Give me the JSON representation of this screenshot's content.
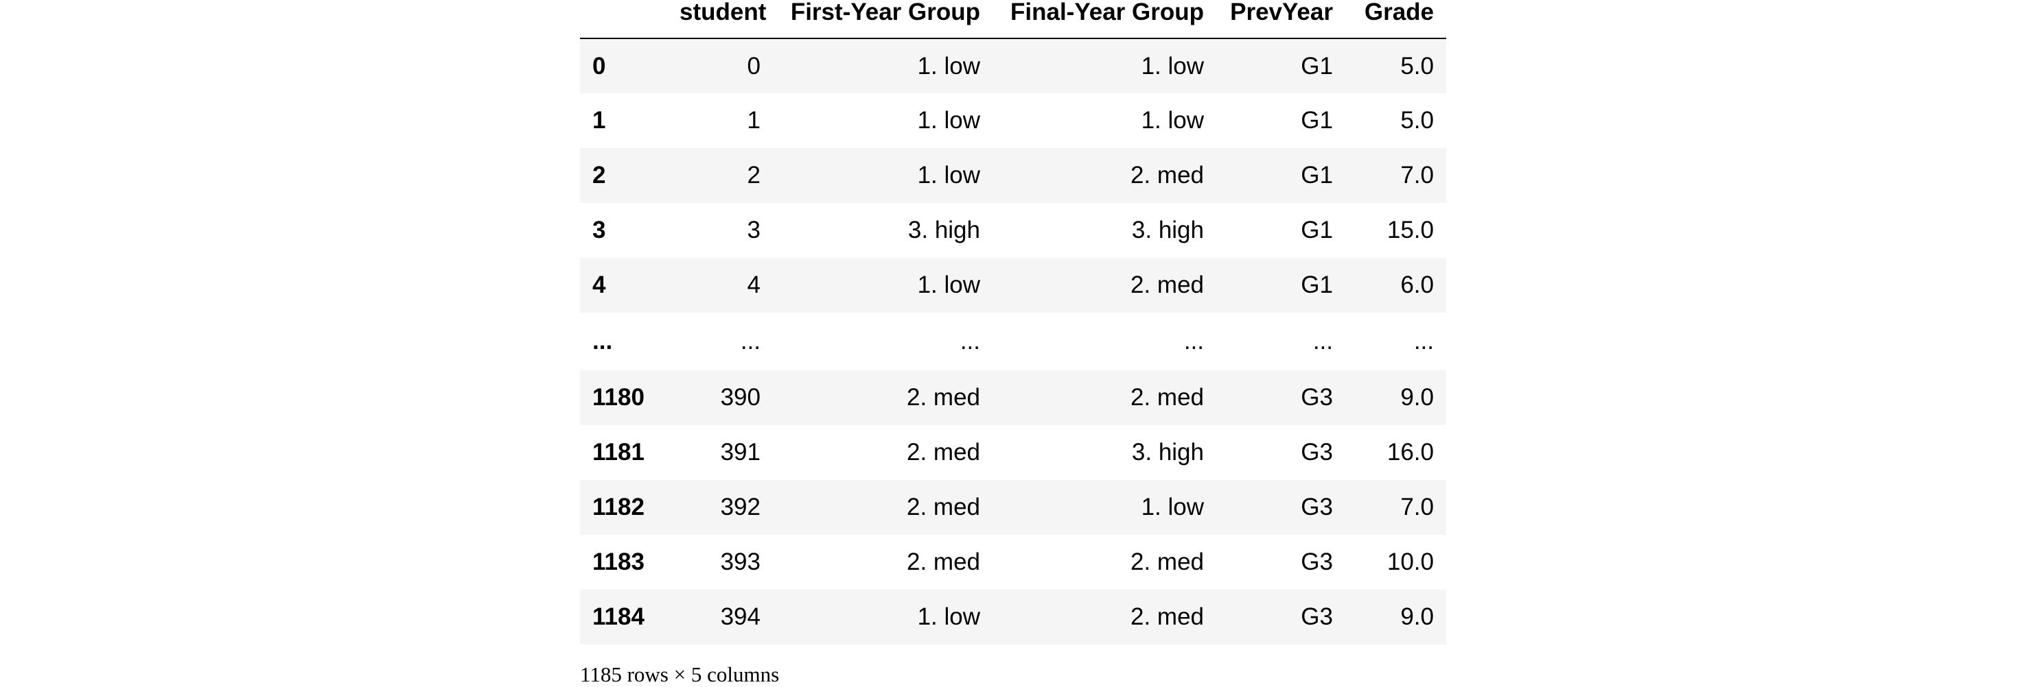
{
  "table": {
    "columns": [
      "",
      "student",
      "First-Year Group",
      "Final-Year Group",
      "PrevYear",
      "Grade"
    ],
    "rows": [
      {
        "index": "0",
        "student": "0",
        "first_year_group": "1. low",
        "final_year_group": "1. low",
        "prev_year": "G1",
        "grade": "5.0"
      },
      {
        "index": "1",
        "student": "1",
        "first_year_group": "1. low",
        "final_year_group": "1. low",
        "prev_year": "G1",
        "grade": "5.0"
      },
      {
        "index": "2",
        "student": "2",
        "first_year_group": "1. low",
        "final_year_group": "2. med",
        "prev_year": "G1",
        "grade": "7.0"
      },
      {
        "index": "3",
        "student": "3",
        "first_year_group": "3. high",
        "final_year_group": "3. high",
        "prev_year": "G1",
        "grade": "15.0"
      },
      {
        "index": "4",
        "student": "4",
        "first_year_group": "1. low",
        "final_year_group": "2. med",
        "prev_year": "G1",
        "grade": "6.0"
      },
      {
        "index": "...",
        "student": "...",
        "first_year_group": "...",
        "final_year_group": "...",
        "prev_year": "...",
        "grade": "..."
      },
      {
        "index": "1180",
        "student": "390",
        "first_year_group": "2. med",
        "final_year_group": "2. med",
        "prev_year": "G3",
        "grade": "9.0"
      },
      {
        "index": "1181",
        "student": "391",
        "first_year_group": "2. med",
        "final_year_group": "3. high",
        "prev_year": "G3",
        "grade": "16.0"
      },
      {
        "index": "1182",
        "student": "392",
        "first_year_group": "2. med",
        "final_year_group": "1. low",
        "prev_year": "G3",
        "grade": "7.0"
      },
      {
        "index": "1183",
        "student": "393",
        "first_year_group": "2. med",
        "final_year_group": "2. med",
        "prev_year": "G3",
        "grade": "10.0"
      },
      {
        "index": "1184",
        "student": "394",
        "first_year_group": "1. low",
        "final_year_group": "2. med",
        "prev_year": "G3",
        "grade": "9.0"
      }
    ],
    "shape_note": "1185 rows × 5 columns"
  }
}
